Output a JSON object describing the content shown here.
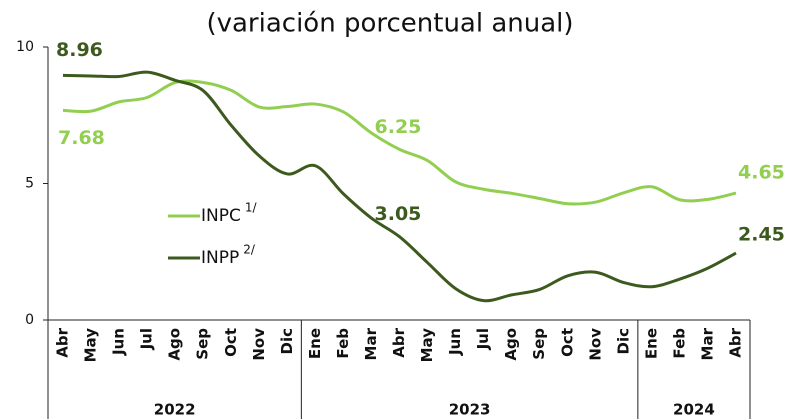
{
  "chart_data": {
    "type": "line",
    "title": "(variación porcentual anual)",
    "categories": [
      "Abr",
      "May",
      "Jun",
      "Jul",
      "Ago",
      "Sep",
      "Oct",
      "Nov",
      "Dic",
      "Ene",
      "Feb",
      "Mar",
      "Abr",
      "May",
      "Jun",
      "Jul",
      "Ago",
      "Sep",
      "Oct",
      "Nov",
      "Dic",
      "Ene",
      "Feb",
      "Mar",
      "Abr"
    ],
    "groups": [
      "2022",
      "2023",
      "2024"
    ],
    "series": [
      {
        "name": "INPC",
        "footnote": "1/",
        "color": "#92cf50",
        "values": [
          7.68,
          7.65,
          7.99,
          8.15,
          8.7,
          8.7,
          8.41,
          7.8,
          7.82,
          7.91,
          7.62,
          6.85,
          6.25,
          5.84,
          5.06,
          4.79,
          4.64,
          4.45,
          4.26,
          4.32,
          4.66,
          4.88,
          4.4,
          4.42,
          4.65
        ]
      },
      {
        "name": "INPP",
        "footnote": "2/",
        "color": "#3d5a1e",
        "values": [
          8.96,
          8.94,
          8.92,
          9.08,
          8.78,
          8.4,
          7.13,
          6.01,
          5.35,
          5.65,
          4.62,
          3.73,
          3.05,
          2.1,
          1.15,
          0.71,
          0.92,
          1.12,
          1.62,
          1.75,
          1.37,
          1.22,
          1.5,
          1.9,
          2.45
        ]
      }
    ],
    "labeled_points": [
      0,
      12,
      24
    ],
    "ylim": [
      0,
      10
    ],
    "yticks": [
      0,
      5,
      10
    ],
    "grid": false
  }
}
